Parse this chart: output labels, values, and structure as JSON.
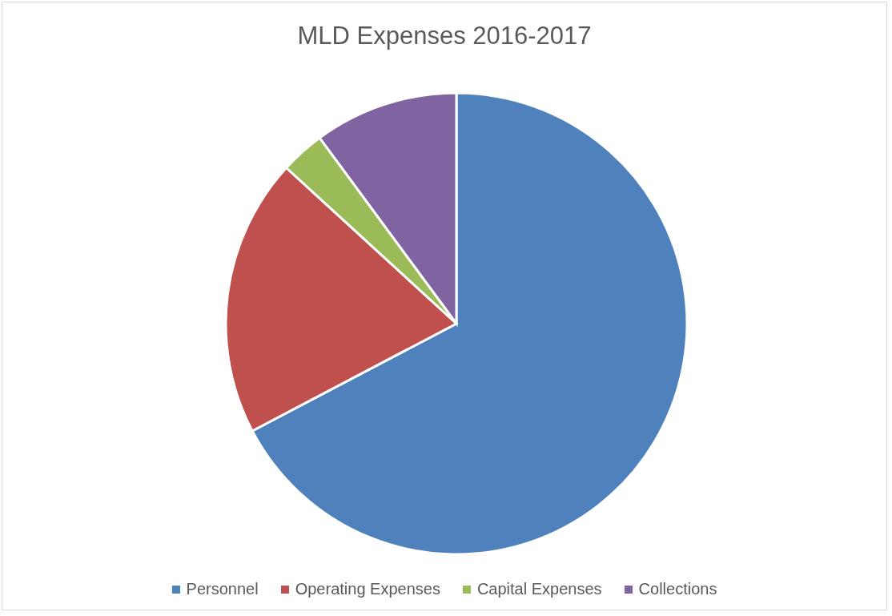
{
  "chart_data": {
    "type": "pie",
    "title": "MLD Expenses 2016-2017",
    "categories": [
      "Personnel",
      "Operating Expenses",
      "Capital Expenses",
      "Collections"
    ],
    "values": [
      67.3,
      19.5,
      3.1,
      10.1
    ],
    "colors": [
      "#4f81bd",
      "#c0504d",
      "#9bbb59",
      "#8064a2"
    ],
    "legend": "bottom"
  }
}
